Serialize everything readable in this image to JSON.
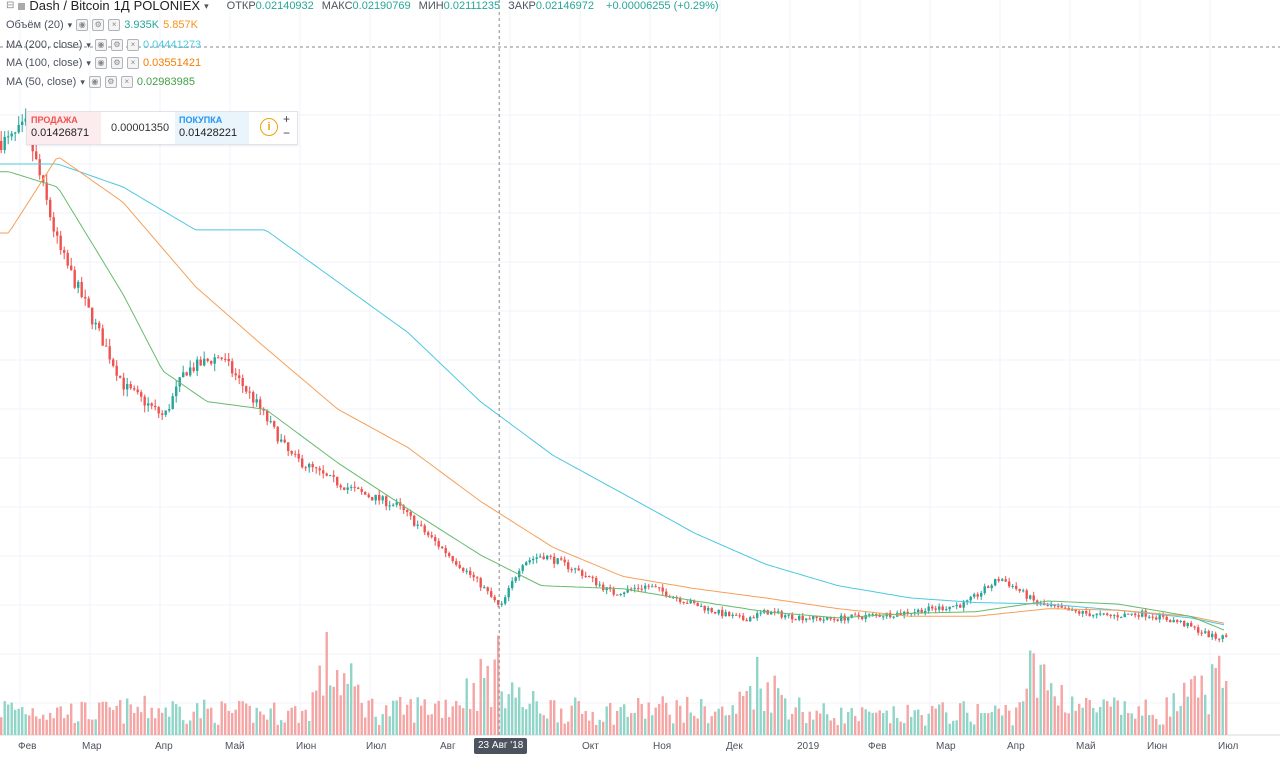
{
  "header": {
    "symbol": "Dash / Bitcoin",
    "interval": "1Д",
    "exchange": "POLONIEX",
    "ohlc": [
      {
        "key": "ОТКР",
        "value": "0.02140932"
      },
      {
        "key": "МАКС",
        "value": "0.02190769"
      },
      {
        "key": "МИН",
        "value": "0.02111235"
      },
      {
        "key": "ЗАКР",
        "value": "0.02146972"
      }
    ],
    "change": "+0.00006255 (+0.29%)"
  },
  "indicators": [
    {
      "label": "Объём (20)",
      "values": [
        "3.935K",
        "5.857K"
      ],
      "colors": [
        "#26a69a",
        "#f7931a"
      ]
    },
    {
      "label": "MA (200, close)",
      "values": [
        "0.04441273"
      ],
      "colors": [
        "#4dc8e0"
      ]
    },
    {
      "label": "MA (100, close)",
      "values": [
        "0.03551421"
      ],
      "colors": [
        "#f57c00"
      ]
    },
    {
      "label": "MA (50, close)",
      "values": [
        "0.02983985"
      ],
      "colors": [
        "#43a047"
      ]
    }
  ],
  "trade": {
    "sell_label": "ПРОДАЖА",
    "sell_price": "0.01426871",
    "spread": "0.00001350",
    "buy_label": "ПОКУПКА",
    "buy_price": "0.01428221"
  },
  "crosshair_date": "23 Авг '18",
  "colors": {
    "up": "#26a69a",
    "down": "#ef5350",
    "vol_up": "#8fd6c9",
    "vol_down": "#f5a5a3",
    "ma200": "#4dc8e0",
    "ma100": "#f5a05a",
    "ma50": "#66bb6a"
  },
  "chart_data": {
    "type": "line",
    "series": [
      {
        "name": "Dash / Bitcoin",
        "kind": "candlestick",
        "x": [
          "2018-01-25",
          "2018-02-01",
          "2018-02-15",
          "2018-03-01",
          "2018-03-15",
          "2018-04-01",
          "2018-04-10",
          "2018-04-25",
          "2018-05-10",
          "2018-05-25",
          "2018-06-10",
          "2018-06-25",
          "2018-07-10",
          "2018-07-25",
          "2018-08-01",
          "2018-08-15",
          "2018-08-23",
          "2018-09-01",
          "2018-09-10",
          "2018-09-25",
          "2018-10-10",
          "2018-10-25",
          "2018-11-10",
          "2018-11-25",
          "2018-12-05",
          "2018-12-15",
          "2018-12-25",
          "2019-01-10",
          "2019-01-25",
          "2019-02-10",
          "2019-02-25",
          "2019-03-10",
          "2019-03-25",
          "2019-04-01",
          "2019-04-10",
          "2019-04-25",
          "2019-05-10",
          "2019-05-25",
          "2019-06-10",
          "2019-06-25",
          "2019-07-01"
        ],
        "values": [
          0.047,
          0.048,
          0.04,
          0.0355,
          0.031,
          0.029,
          0.032,
          0.033,
          0.03,
          0.0265,
          0.025,
          0.024,
          0.0232,
          0.021,
          0.02,
          0.018,
          0.0165,
          0.0195,
          0.02,
          0.019,
          0.0175,
          0.018,
          0.017,
          0.0162,
          0.0158,
          0.0163,
          0.016,
          0.0158,
          0.016,
          0.0162,
          0.0165,
          0.0168,
          0.0185,
          0.0178,
          0.0168,
          0.0163,
          0.016,
          0.0162,
          0.0156,
          0.0146,
          0.0147
        ]
      },
      {
        "name": "MA (200, close)",
        "x": [
          "2018-01-25",
          "2018-02-15",
          "2018-03-15",
          "2018-04-15",
          "2018-05-15",
          "2018-06-15",
          "2018-07-15",
          "2018-08-15",
          "2018-09-15",
          "2018-10-15",
          "2018-11-15",
          "2018-12-15",
          "2019-01-15",
          "2019-02-15",
          "2019-03-15",
          "2019-04-15",
          "2019-05-15",
          "2019-06-15",
          "2019-07-01"
        ],
        "values": [
          0.0455,
          0.0455,
          0.044,
          0.0412,
          0.0412,
          0.0378,
          0.0345,
          0.03,
          0.0265,
          0.024,
          0.0214,
          0.0194,
          0.018,
          0.0172,
          0.0169,
          0.0168,
          0.0164,
          0.0159,
          0.0154
        ]
      },
      {
        "name": "MA (100, close)",
        "x": [
          "2018-01-25",
          "2018-02-15",
          "2018-03-15",
          "2018-04-15",
          "2018-05-15",
          "2018-06-15",
          "2018-07-15",
          "2018-08-15",
          "2018-09-15",
          "2018-10-15",
          "2018-11-15",
          "2018-12-15",
          "2019-01-15",
          "2019-02-15",
          "2019-03-15",
          "2019-04-15",
          "2019-05-15",
          "2019-06-15",
          "2019-07-01"
        ],
        "values": [
          0.041,
          0.046,
          0.043,
          0.0375,
          0.0335,
          0.0295,
          0.027,
          0.0235,
          0.0205,
          0.0186,
          0.0178,
          0.0172,
          0.0165,
          0.016,
          0.016,
          0.0165,
          0.0164,
          0.016,
          0.0155
        ]
      },
      {
        "name": "MA (50, close)",
        "x": [
          "2018-01-25",
          "2018-02-15",
          "2018-03-15",
          "2018-04-01",
          "2018-04-20",
          "2018-05-15",
          "2018-06-15",
          "2018-07-15",
          "2018-08-15",
          "2018-09-10",
          "2018-10-15",
          "2018-11-15",
          "2018-12-15",
          "2019-01-15",
          "2019-02-15",
          "2019-03-15",
          "2019-04-15",
          "2019-05-15",
          "2019-06-15",
          "2019-07-01"
        ],
        "values": [
          0.045,
          0.044,
          0.037,
          0.032,
          0.03,
          0.0295,
          0.026,
          0.023,
          0.02,
          0.018,
          0.0178,
          0.017,
          0.0163,
          0.0159,
          0.0162,
          0.0163,
          0.017,
          0.0168,
          0.016,
          0.015
        ]
      },
      {
        "name": "Объём (20)",
        "kind": "volume",
        "x": [
          "2018-01-25",
          "2018-03-01",
          "2018-04-01",
          "2018-05-01",
          "2018-06-01",
          "2018-06-10",
          "2018-07-01",
          "2018-08-01",
          "2018-08-23",
          "2018-09-01",
          "2018-10-01",
          "2018-11-01",
          "2018-12-01",
          "2018-12-10",
          "2019-01-01",
          "2019-02-01",
          "2019-03-01",
          "2019-04-01",
          "2019-04-05",
          "2019-05-01",
          "2019-06-01",
          "2019-06-28",
          "2019-07-01"
        ],
        "values": [
          0.6,
          0.5,
          0.6,
          0.5,
          0.5,
          1.6,
          0.5,
          0.7,
          1.5,
          0.7,
          0.5,
          0.6,
          0.5,
          1.3,
          0.5,
          0.4,
          0.5,
          0.5,
          1.4,
          0.6,
          0.5,
          1.2,
          0.5
        ]
      }
    ],
    "x_ticks": [
      "Фев",
      "Мар",
      "Апр",
      "Май",
      "Июн",
      "Июл",
      "Авг",
      "Окт",
      "Ноя",
      "Дек",
      "2019",
      "Фев",
      "Мар",
      "Апр",
      "Май",
      "Июн",
      "Июл"
    ],
    "ylim": [
      0.0125,
      0.05
    ],
    "grid": true
  }
}
